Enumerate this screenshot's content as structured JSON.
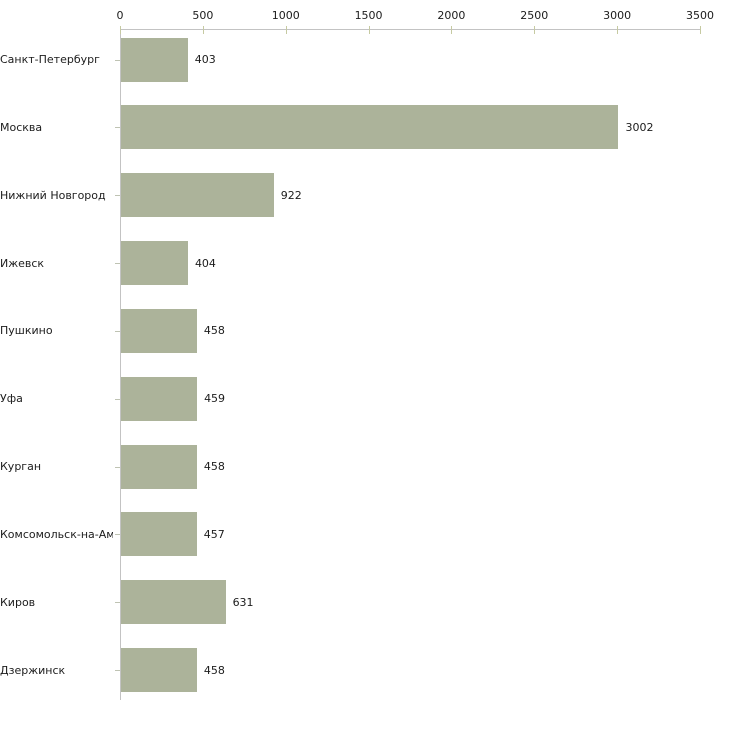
{
  "chart_data": {
    "type": "bar",
    "orientation": "horizontal",
    "title": "",
    "xlabel": "",
    "ylabel": "",
    "xlim": [
      0,
      3500
    ],
    "x_ticks": [
      0,
      500,
      1000,
      1500,
      2000,
      2500,
      3000,
      3500
    ],
    "grid": false,
    "legend": false,
    "categories": [
      "Санкт-Петербург",
      "Москва",
      "Нижний Новгород",
      "Ижевск",
      "Пушкино",
      "Уфа",
      "Курган",
      "Комсомольск-на-Амуре",
      "Киров",
      "Дзержинск"
    ],
    "values": [
      403,
      3002,
      922,
      404,
      458,
      459,
      458,
      457,
      631,
      458
    ],
    "value_labels": [
      "403",
      "3002",
      "922",
      "404",
      "458",
      "459",
      "458",
      "457",
      "631",
      "458"
    ],
    "colors": {
      "bar_fill": "#acb39a",
      "axis_line": "#c3c3c3",
      "x_tick_mark": "#c6caa2",
      "category_tick_mark": "#bfc3b3",
      "text": "#1c1c1c"
    }
  }
}
